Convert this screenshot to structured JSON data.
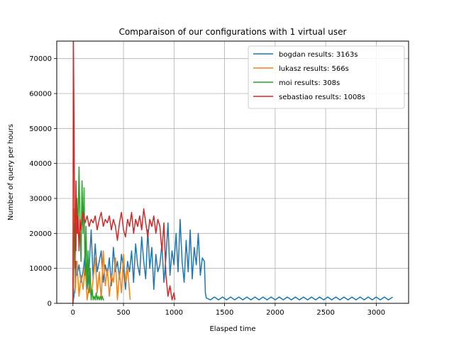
{
  "chart_data": {
    "type": "line",
    "title": "Comparaison of our configurations with 1 virtual user",
    "xlabel": "Elasped time",
    "ylabel": "Number of query per hours",
    "xlim": [
      -160,
      3320
    ],
    "ylim": [
      0,
      75000
    ],
    "xticks": [
      0,
      500,
      1000,
      1500,
      2000,
      2500,
      3000
    ],
    "yticks": [
      0,
      10000,
      20000,
      30000,
      40000,
      50000,
      60000,
      70000
    ],
    "xtick_labels": [
      "0",
      "500",
      "1000",
      "1500",
      "2000",
      "2500",
      "3000"
    ],
    "ytick_labels": [
      "0",
      "10000",
      "20000",
      "30000",
      "40000",
      "50000",
      "60000",
      "70000"
    ],
    "grid": true,
    "legend_position": "top-right",
    "series": [
      {
        "name": "bogdan results: 3163s",
        "color": "#1f77b4",
        "x": [
          0,
          10,
          20,
          30,
          40,
          60,
          80,
          100,
          120,
          140,
          160,
          180,
          200,
          220,
          240,
          260,
          280,
          300,
          320,
          340,
          360,
          380,
          400,
          420,
          440,
          460,
          480,
          500,
          520,
          540,
          560,
          580,
          600,
          620,
          640,
          660,
          680,
          700,
          720,
          740,
          760,
          780,
          800,
          820,
          840,
          860,
          880,
          900,
          920,
          940,
          960,
          980,
          1000,
          1020,
          1040,
          1060,
          1080,
          1100,
          1120,
          1140,
          1160,
          1180,
          1200,
          1220,
          1240,
          1260,
          1280,
          1300,
          1310,
          1320,
          1360,
          1400,
          1440,
          1480,
          1520,
          1560,
          1600,
          1640,
          1680,
          1720,
          1760,
          1800,
          1840,
          1880,
          1920,
          1960,
          2000,
          2040,
          2080,
          2120,
          2160,
          2200,
          2240,
          2280,
          2320,
          2360,
          2400,
          2440,
          2480,
          2520,
          2560,
          2600,
          2640,
          2680,
          2720,
          2760,
          2800,
          2840,
          2880,
          2920,
          2960,
          3000,
          3040,
          3080,
          3120,
          3163
        ],
        "y": [
          0,
          2000,
          5000,
          12000,
          8000,
          11000,
          6000,
          9000,
          14000,
          4000,
          10000,
          21000,
          7000,
          17000,
          9000,
          12000,
          15000,
          6000,
          11000,
          8000,
          13000,
          5000,
          16000,
          9000,
          12000,
          7000,
          14000,
          10000,
          4000,
          12000,
          9000,
          15000,
          6000,
          17000,
          11000,
          8000,
          19000,
          12000,
          7000,
          21000,
          10000,
          16000,
          4000,
          14000,
          9000,
          11000,
          17000,
          6000,
          13000,
          23000,
          8000,
          15000,
          11000,
          20000,
          9000,
          24000,
          12000,
          6000,
          18000,
          9000,
          21000,
          7000,
          16000,
          11000,
          20000,
          8000,
          13000,
          12000,
          3000,
          1500,
          1000,
          1800,
          1000,
          1800,
          1000,
          1800,
          1000,
          1800,
          1000,
          1800,
          1000,
          1800,
          1000,
          1800,
          1000,
          1800,
          1000,
          1800,
          1000,
          1800,
          1000,
          1800,
          1000,
          1800,
          1000,
          1800,
          1000,
          1800,
          1000,
          1800,
          1000,
          1800,
          1000,
          1800,
          1000,
          1800,
          1000,
          1800,
          1000,
          1800,
          1000,
          1800,
          1000,
          1800,
          1000,
          1800
        ]
      },
      {
        "name": "lukasz results: 566s",
        "color": "#ff7f0e",
        "x": [
          0,
          10,
          20,
          40,
          60,
          80,
          100,
          120,
          140,
          160,
          180,
          200,
          220,
          240,
          260,
          280,
          300,
          320,
          340,
          360,
          380,
          400,
          420,
          440,
          460,
          480,
          500,
          520,
          540,
          566
        ],
        "y": [
          0,
          27000,
          3000,
          12000,
          2000,
          8000,
          4000,
          11000,
          1000,
          5000,
          2000,
          7000,
          13000,
          3000,
          9000,
          1000,
          15000,
          5000,
          10000,
          2000,
          8000,
          6000,
          13000,
          1000,
          9000,
          3000,
          14000,
          6000,
          10000,
          1000
        ]
      },
      {
        "name": "moi results: 308s",
        "color": "#2ca02c",
        "x": [
          0,
          10,
          20,
          30,
          40,
          50,
          60,
          70,
          80,
          90,
          100,
          110,
          120,
          130,
          140,
          150,
          160,
          170,
          180,
          190,
          200,
          210,
          220,
          230,
          240,
          250,
          260,
          270,
          280,
          290,
          300,
          308
        ],
        "y": [
          0,
          21000,
          25000,
          15000,
          30000,
          20000,
          39000,
          22000,
          12000,
          35000,
          20000,
          33000,
          8000,
          22000,
          5000,
          15000,
          3000,
          10000,
          1000,
          4000,
          1000,
          2000,
          1000,
          3000,
          1000,
          2000,
          1000,
          2000,
          1000,
          2000,
          1000,
          1000
        ]
      },
      {
        "name": "sebastiao results: 1008s",
        "color": "#d62728",
        "x": [
          0,
          5,
          10,
          15,
          20,
          30,
          40,
          50,
          60,
          70,
          80,
          100,
          120,
          140,
          160,
          180,
          200,
          220,
          240,
          260,
          280,
          300,
          320,
          340,
          360,
          380,
          400,
          420,
          440,
          460,
          480,
          500,
          520,
          540,
          560,
          580,
          600,
          620,
          640,
          660,
          680,
          700,
          720,
          740,
          760,
          780,
          800,
          820,
          840,
          860,
          880,
          900,
          920,
          940,
          960,
          980,
          1000,
          1008
        ],
        "y": [
          0,
          75000,
          55000,
          30000,
          10000,
          35000,
          20000,
          25000,
          15000,
          24000,
          21000,
          26000,
          23000,
          25000,
          22000,
          24000,
          23000,
          25000,
          21000,
          24000,
          26000,
          22000,
          24000,
          23000,
          25000,
          21000,
          24000,
          22000,
          18000,
          23000,
          26000,
          21000,
          19000,
          24000,
          22000,
          26000,
          20000,
          24000,
          22000,
          25000,
          21000,
          27000,
          23000,
          19000,
          24000,
          22000,
          25000,
          20000,
          24000,
          22000,
          15000,
          23000,
          8000,
          2000,
          5000,
          1000,
          3000,
          1000
        ]
      }
    ]
  }
}
